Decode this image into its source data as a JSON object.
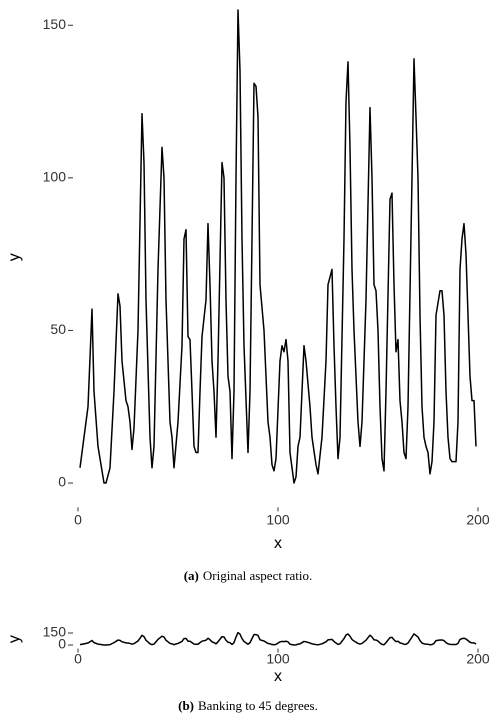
{
  "chart_data": [
    {
      "type": "line",
      "caption_label": "(a)",
      "caption": "Original aspect ratio.",
      "x_label": "x",
      "y_label": "y",
      "xlim": [
        -1,
        201
      ],
      "ylim": [
        -7,
        155
      ],
      "xticks": [
        0,
        100,
        200
      ],
      "yticks": [
        0,
        50,
        100,
        150
      ],
      "grid": false,
      "series": [
        {
          "color": "#000000",
          "x": [
            1,
            3,
            5,
            7,
            8,
            10,
            11,
            13,
            14,
            16,
            18,
            20,
            21,
            22,
            24,
            25,
            26,
            27,
            28,
            30,
            32,
            33,
            34,
            36,
            37,
            38,
            40,
            42,
            43,
            44,
            46,
            47,
            48,
            50,
            52,
            53,
            54,
            55,
            56,
            57,
            58,
            59,
            60,
            61,
            62,
            64,
            65,
            66,
            67,
            68,
            69,
            70,
            72,
            73,
            74,
            75,
            76,
            77,
            78,
            79,
            80,
            81,
            82,
            83,
            85,
            86,
            87,
            88,
            89,
            90,
            91,
            93,
            95,
            96,
            97,
            98,
            99,
            101,
            102,
            103,
            104,
            105,
            106,
            107,
            108,
            109,
            110,
            111,
            113,
            114,
            116,
            117,
            119,
            120,
            122,
            124,
            125,
            127,
            128,
            129,
            130,
            131,
            133,
            134,
            135,
            136,
            137,
            138,
            140,
            141,
            142,
            144,
            146,
            147,
            148,
            149,
            150,
            151,
            152,
            153,
            154,
            156,
            157,
            158,
            159,
            160,
            161,
            162,
            163,
            164,
            165,
            167,
            168,
            169,
            170,
            171,
            172,
            173,
            174,
            175,
            176,
            177,
            178,
            179,
            181,
            182,
            183,
            184,
            185,
            186,
            187,
            188,
            189,
            190,
            191,
            192,
            193,
            194,
            195,
            196,
            197,
            198,
            199
          ],
          "values": [
            5,
            15,
            25,
            57,
            30,
            12,
            8,
            0,
            0,
            5,
            30,
            62,
            58,
            40,
            27,
            25,
            20,
            11,
            18,
            50,
            121,
            105,
            60,
            15,
            5,
            12,
            70,
            110,
            100,
            60,
            20,
            15,
            5,
            20,
            45,
            80,
            83,
            48,
            47,
            30,
            12,
            10,
            10,
            30,
            48,
            60,
            85,
            65,
            40,
            30,
            15,
            40,
            105,
            100,
            60,
            35,
            30,
            8,
            30,
            100,
            155,
            135,
            80,
            45,
            10,
            30,
            80,
            131,
            130,
            120,
            65,
            50,
            20,
            15,
            6,
            4,
            8,
            40,
            45,
            43,
            47,
            40,
            10,
            5,
            0,
            2,
            12,
            15,
            45,
            40,
            25,
            15,
            6,
            3,
            15,
            40,
            65,
            70,
            45,
            25,
            8,
            15,
            80,
            125,
            138,
            110,
            70,
            50,
            20,
            12,
            20,
            60,
            123,
            100,
            65,
            63,
            50,
            25,
            8,
            4,
            30,
            93,
            95,
            65,
            43,
            47,
            27,
            20,
            10,
            8,
            25,
            100,
            139,
            120,
            100,
            55,
            25,
            15,
            12,
            10,
            3,
            7,
            20,
            55,
            63,
            63,
            55,
            30,
            15,
            8,
            7,
            7,
            7,
            20,
            70,
            80,
            85,
            75,
            55,
            35,
            27,
            27,
            12
          ]
        }
      ]
    },
    {
      "type": "line",
      "caption_label": "(b)",
      "caption": "Banking to 45 degrees.",
      "x_label": "x",
      "y_label": "y",
      "xlim": [
        -1,
        201
      ],
      "ylim": [
        -7,
        155
      ],
      "xticks": [
        0,
        100,
        200
      ],
      "yticks": [
        0,
        150
      ],
      "grid": false,
      "series": [
        {
          "color": "#000000",
          "x": [
            1,
            3,
            5,
            7,
            8,
            10,
            11,
            13,
            14,
            16,
            18,
            20,
            21,
            22,
            24,
            25,
            26,
            27,
            28,
            30,
            32,
            33,
            34,
            36,
            37,
            38,
            40,
            42,
            43,
            44,
            46,
            47,
            48,
            50,
            52,
            53,
            54,
            55,
            56,
            57,
            58,
            59,
            60,
            61,
            62,
            64,
            65,
            66,
            67,
            68,
            69,
            70,
            72,
            73,
            74,
            75,
            76,
            77,
            78,
            79,
            80,
            81,
            82,
            83,
            85,
            86,
            87,
            88,
            89,
            90,
            91,
            93,
            95,
            96,
            97,
            98,
            99,
            101,
            102,
            103,
            104,
            105,
            106,
            107,
            108,
            109,
            110,
            111,
            113,
            114,
            116,
            117,
            119,
            120,
            122,
            124,
            125,
            127,
            128,
            129,
            130,
            131,
            133,
            134,
            135,
            136,
            137,
            138,
            140,
            141,
            142,
            144,
            146,
            147,
            148,
            149,
            150,
            151,
            152,
            153,
            154,
            156,
            157,
            158,
            159,
            160,
            161,
            162,
            163,
            164,
            165,
            167,
            168,
            169,
            170,
            171,
            172,
            173,
            174,
            175,
            176,
            177,
            178,
            179,
            181,
            182,
            183,
            184,
            185,
            186,
            187,
            188,
            189,
            190,
            191,
            192,
            193,
            194,
            195,
            196,
            197,
            198,
            199
          ],
          "values": [
            5,
            15,
            25,
            57,
            30,
            12,
            8,
            0,
            0,
            5,
            30,
            62,
            58,
            40,
            27,
            25,
            20,
            11,
            18,
            50,
            121,
            105,
            60,
            15,
            5,
            12,
            70,
            110,
            100,
            60,
            20,
            15,
            5,
            20,
            45,
            80,
            83,
            48,
            47,
            30,
            12,
            10,
            10,
            30,
            48,
            60,
            85,
            65,
            40,
            30,
            15,
            40,
            105,
            100,
            60,
            35,
            30,
            8,
            30,
            100,
            155,
            135,
            80,
            45,
            10,
            30,
            80,
            131,
            130,
            120,
            65,
            50,
            20,
            15,
            6,
            4,
            8,
            40,
            45,
            43,
            47,
            40,
            10,
            5,
            0,
            2,
            12,
            15,
            45,
            40,
            25,
            15,
            6,
            3,
            15,
            40,
            65,
            70,
            45,
            25,
            8,
            15,
            80,
            125,
            138,
            110,
            70,
            50,
            20,
            12,
            20,
            60,
            123,
            100,
            65,
            63,
            50,
            25,
            8,
            4,
            30,
            93,
            95,
            65,
            43,
            47,
            27,
            20,
            10,
            8,
            25,
            100,
            139,
            120,
            100,
            55,
            25,
            15,
            12,
            10,
            3,
            7,
            20,
            55,
            63,
            63,
            55,
            30,
            15,
            8,
            7,
            7,
            7,
            20,
            70,
            80,
            85,
            75,
            55,
            35,
            27,
            27,
            12
          ]
        }
      ]
    }
  ]
}
